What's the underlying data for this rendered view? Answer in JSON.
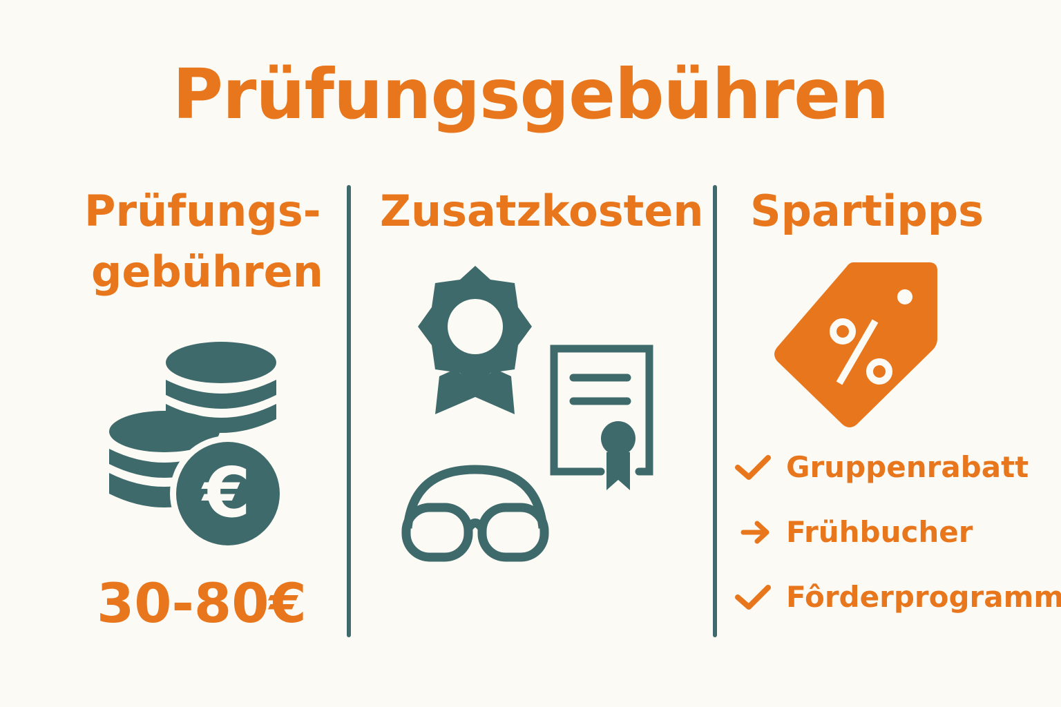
{
  "title": "Prüfungsgebühren",
  "colors": {
    "accent": "#e8761c",
    "icon": "#3f6a6b",
    "background": "#fcfaf4"
  },
  "columns": [
    {
      "heading_lines": [
        "Prüfungs-",
        "gebühren"
      ],
      "icon": "euro-coins-icon",
      "value": "30-80€"
    },
    {
      "heading": "Zusatzkosten",
      "icons": [
        "award-badge-icon",
        "certificate-icon",
        "swim-goggles-icon"
      ]
    },
    {
      "heading": "Spartipps",
      "icon": "percent-tag-icon",
      "tips": [
        {
          "icon": "check-icon",
          "label": "Gruppenrabatt"
        },
        {
          "icon": "arrow-right-icon",
          "label": "Frühbucher"
        },
        {
          "icon": "check-icon",
          "label": "Fôrderprogramme"
        }
      ]
    }
  ]
}
